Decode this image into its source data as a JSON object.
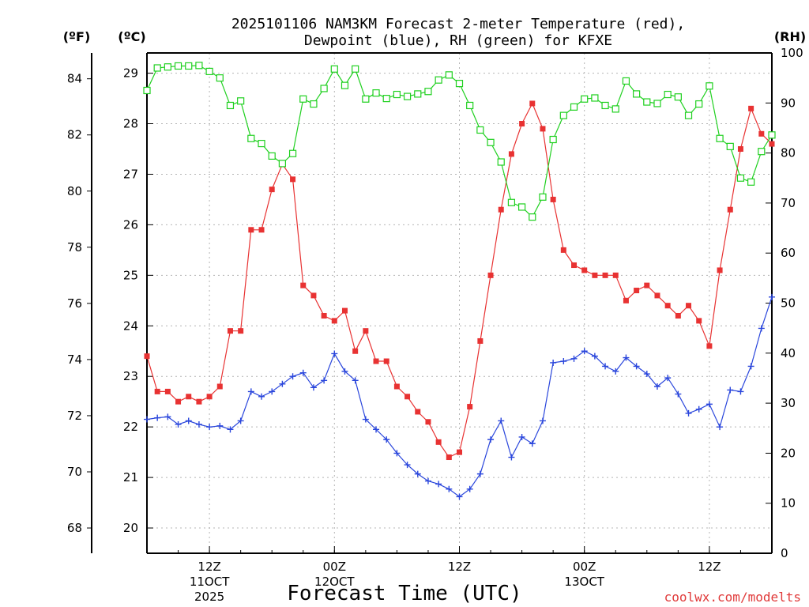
{
  "chart_data": {
    "type": "line",
    "title_line1": "2025101106 NAM3KM Forecast 2-meter Temperature (red),",
    "title_line2": "Dewpoint (blue), RH (green) for KFXE",
    "xlabel": "Forecast Time (UTC)",
    "credit": "coolwx.com/modelts",
    "left_outer_axis": {
      "unit": "(ºF)",
      "ticks": [
        68,
        70,
        72,
        74,
        76,
        78,
        80,
        82,
        84
      ]
    },
    "left_axis": {
      "unit": "(ºC)",
      "ylim": [
        19.5,
        29.4
      ],
      "ticks": [
        20,
        21,
        22,
        23,
        24,
        25,
        26,
        27,
        28,
        29
      ]
    },
    "right_axis": {
      "unit": "(RH)",
      "ylim": [
        0,
        100
      ],
      "ticks": [
        0,
        10,
        20,
        30,
        40,
        50,
        60,
        70,
        80,
        90,
        100
      ]
    },
    "x_hours": {
      "start": 6,
      "end": 66,
      "step": 1
    },
    "x_ticks": [
      {
        "hour": 12,
        "label": "12Z",
        "sub1": "11OCT",
        "sub2": "2025"
      },
      {
        "hour": 24,
        "label": "00Z",
        "sub1": "12OCT",
        "sub2": ""
      },
      {
        "hour": 36,
        "label": "12Z",
        "sub1": "",
        "sub2": ""
      },
      {
        "hour": 48,
        "label": "00Z",
        "sub1": "13OCT",
        "sub2": ""
      },
      {
        "hour": 60,
        "label": "12Z",
        "sub1": "",
        "sub2": ""
      }
    ],
    "series": [
      {
        "name": "2-meter Temperature",
        "units": "°C",
        "axis": "left",
        "color": "#e83232",
        "marker": "filled-square",
        "values": [
          23.4,
          22.7,
          22.7,
          22.5,
          22.6,
          22.5,
          22.6,
          22.8,
          23.9,
          23.9,
          25.9,
          25.9,
          26.7,
          27.2,
          26.9,
          24.8,
          24.6,
          24.2,
          24.1,
          24.3,
          23.5,
          23.9,
          23.3,
          23.3,
          22.8,
          22.6,
          22.3,
          22.1,
          21.7,
          21.4,
          21.5,
          22.4,
          23.7,
          25.0,
          26.3,
          27.4,
          28.0,
          28.4,
          27.9,
          26.5,
          25.5,
          25.2,
          25.1,
          25.0,
          25.0,
          25.0,
          24.5,
          24.7,
          24.8,
          24.6,
          24.4,
          24.2,
          24.4,
          24.1,
          23.6,
          25.1,
          26.3,
          27.5,
          28.3,
          27.8,
          27.6
        ]
      },
      {
        "name": "Dewpoint",
        "units": "°C",
        "axis": "left",
        "color": "#2a46dc",
        "marker": "plus",
        "values": [
          22.15,
          22.18,
          22.2,
          22.05,
          22.12,
          22.05,
          22.0,
          22.02,
          21.95,
          22.12,
          22.7,
          22.6,
          22.7,
          22.85,
          23.0,
          23.07,
          22.78,
          22.92,
          23.45,
          23.1,
          22.92,
          22.15,
          21.95,
          21.75,
          21.48,
          21.25,
          21.07,
          20.93,
          20.87,
          20.77,
          20.62,
          20.77,
          21.07,
          21.75,
          22.12,
          21.4,
          21.8,
          21.67,
          22.12,
          23.27,
          23.3,
          23.35,
          23.5,
          23.4,
          23.2,
          23.1,
          23.37,
          23.2,
          23.05,
          22.8,
          22.97,
          22.65,
          22.27,
          22.35,
          22.45,
          22.0,
          22.73,
          22.7,
          23.2,
          23.95,
          24.57
        ]
      },
      {
        "name": "Relative Humidity",
        "units": "%",
        "axis": "right",
        "color": "#1fd01f",
        "marker": "open-square",
        "values": [
          92.5,
          97,
          97.2,
          97.4,
          97.4,
          97.5,
          96.3,
          95,
          89.5,
          90.4,
          82.9,
          81.9,
          79.4,
          77.9,
          79.9,
          90.8,
          89.8,
          92.9,
          96.8,
          93.5,
          96.8,
          90.8,
          92,
          90.9,
          91.7,
          91.3,
          91.8,
          92.3,
          94.6,
          95.6,
          93.9,
          89.5,
          84.6,
          82.1,
          78.2,
          70.1,
          69.2,
          67.2,
          71.2,
          82.7,
          87.5,
          89.2,
          90.8,
          91,
          89.5,
          88.8,
          94.4,
          91.8,
          90.2,
          89.9,
          91.7,
          91.2,
          87.5,
          89.8,
          93.4,
          82.9,
          81.3,
          75,
          74.2,
          80.3,
          83.6
        ]
      }
    ]
  }
}
